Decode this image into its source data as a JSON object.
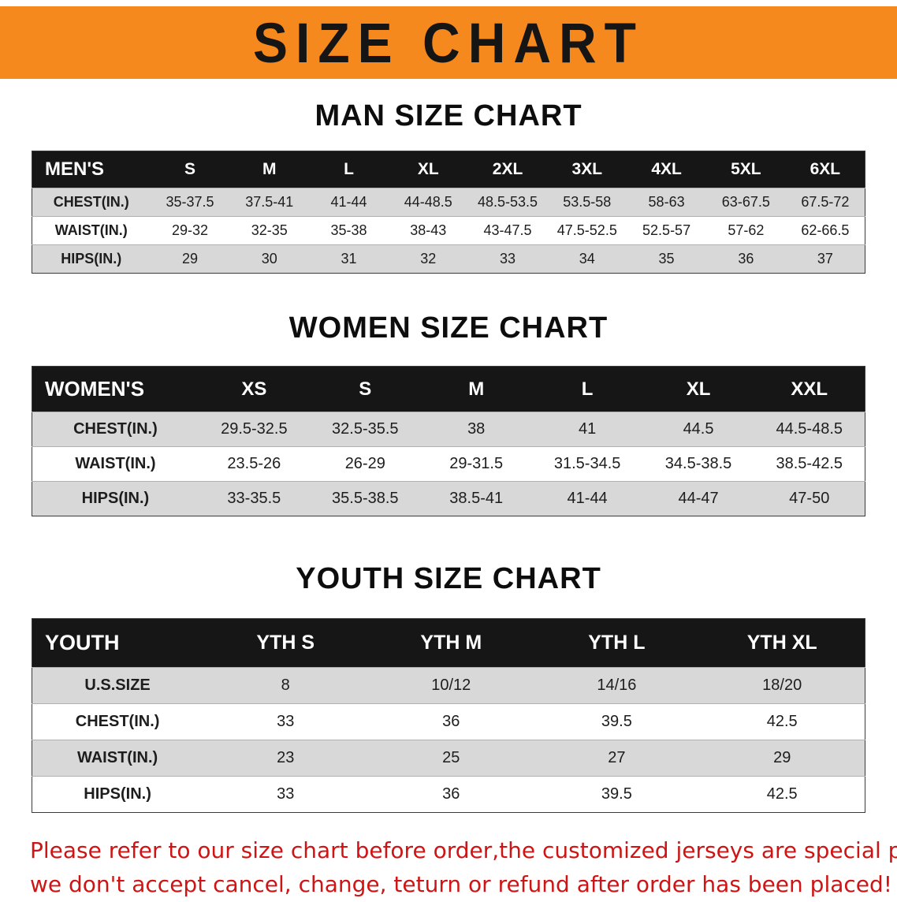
{
  "banner": {
    "title": "SIZE CHART"
  },
  "headings": {
    "man": "MAN SIZE CHART",
    "women": "WOMEN SIZE CHART",
    "youth": "YOUTH SIZE CHART"
  },
  "tables": [
    {
      "id": "men",
      "header": [
        "MEN'S",
        "S",
        "M",
        "L",
        "XL",
        "2XL",
        "3XL",
        "4XL",
        "5XL",
        "6XL"
      ],
      "rows": [
        [
          "CHEST(IN.)",
          "35-37.5",
          "37.5-41",
          "41-44",
          "44-48.5",
          "48.5-53.5",
          "53.5-58",
          "58-63",
          "63-67.5",
          "67.5-72"
        ],
        [
          "WAIST(IN.)",
          "29-32",
          "32-35",
          "35-38",
          "38-43",
          "43-47.5",
          "47.5-52.5",
          "52.5-57",
          "57-62",
          "62-66.5"
        ],
        [
          "HIPS(IN.)",
          "29",
          "30",
          "31",
          "32",
          "33",
          "34",
          "35",
          "36",
          "37"
        ]
      ]
    },
    {
      "id": "women",
      "header": [
        "WOMEN'S",
        "XS",
        "S",
        "M",
        "L",
        "XL",
        "XXL"
      ],
      "rows": [
        [
          "CHEST(IN.)",
          "29.5-32.5",
          "32.5-35.5",
          "38",
          "41",
          "44.5",
          "44.5-48.5"
        ],
        [
          "WAIST(IN.)",
          "23.5-26",
          "26-29",
          "29-31.5",
          "31.5-34.5",
          "34.5-38.5",
          "38.5-42.5"
        ],
        [
          "HIPS(IN.)",
          "33-35.5",
          "35.5-38.5",
          "38.5-41",
          "41-44",
          "44-47",
          "47-50"
        ]
      ]
    },
    {
      "id": "youth",
      "header": [
        "YOUTH",
        "YTH S",
        "YTH M",
        "YTH L",
        "YTH XL"
      ],
      "rows": [
        [
          "U.S.SIZE",
          "8",
          "10/12",
          "14/16",
          "18/20"
        ],
        [
          "CHEST(IN.)",
          "33",
          "36",
          "39.5",
          "42.5"
        ],
        [
          "WAIST(IN.)",
          "23",
          "25",
          "27",
          "29"
        ],
        [
          "HIPS(IN.)",
          "33",
          "36",
          "39.5",
          "42.5"
        ]
      ]
    }
  ],
  "disclaimer": {
    "line1": "Please refer to our size chart before order,the customized jerseys are special products,",
    "line2": "we don't accept cancel, change, teturn or refund after order has been placed!"
  },
  "colors": {
    "banner_orange": "#f6891e",
    "table_header_black": "#161616",
    "row_gray": "#d8d8d8",
    "row_white": "#ffffff",
    "disclaimer_red": "#ce1414"
  }
}
